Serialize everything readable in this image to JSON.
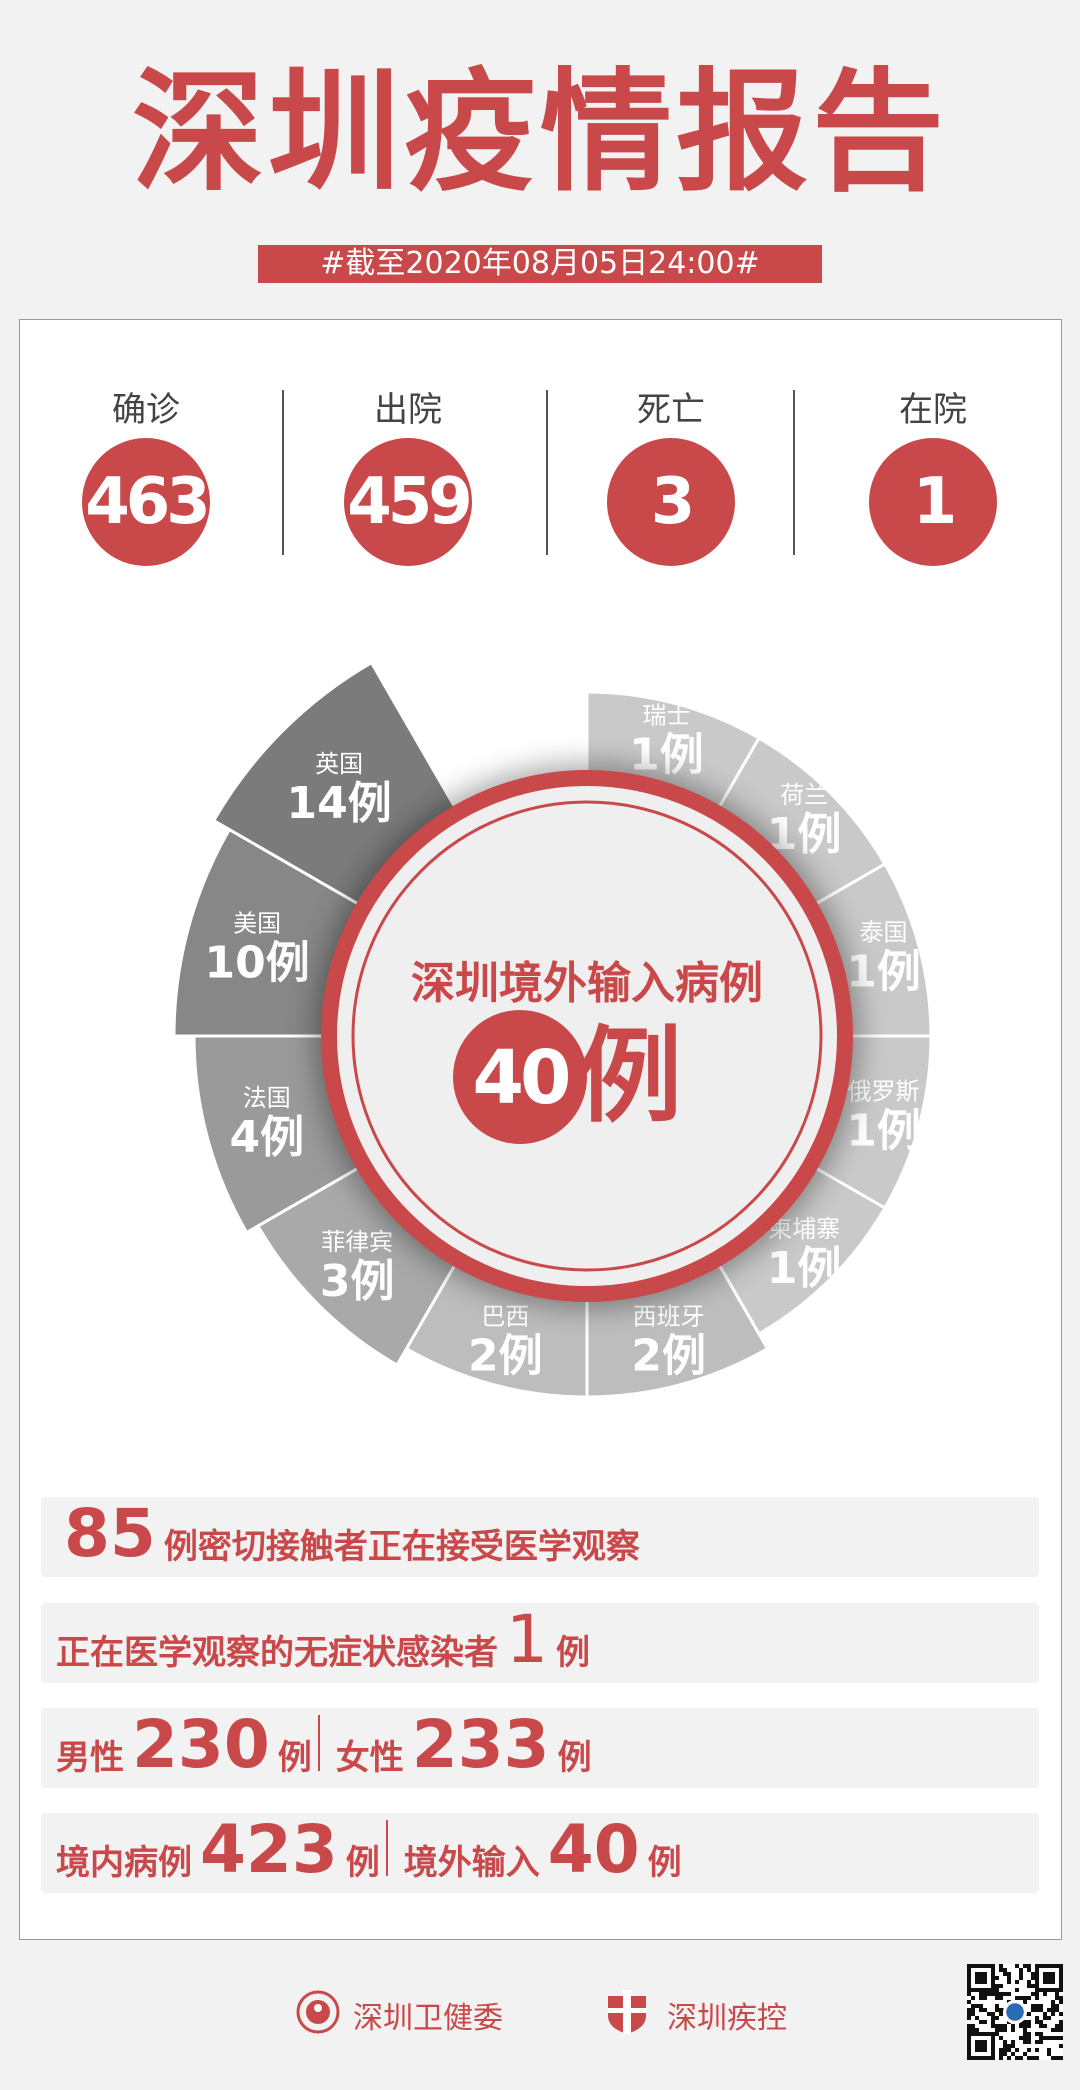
{
  "header": {
    "title": "深圳疫情报告",
    "date": "#截至2020年08月05日24:00#"
  },
  "stats": [
    {
      "label": "确诊",
      "value": "463"
    },
    {
      "label": "出院",
      "value": "459"
    },
    {
      "label": "死亡",
      "value": "3"
    },
    {
      "label": "在院",
      "value": "1"
    }
  ],
  "colors": {
    "accent": "#c9484a",
    "panel": "#f2f2f2"
  },
  "imported": {
    "title": "深圳境外输入病例",
    "total": "40",
    "unit": "例",
    "countries": [
      {
        "name": "瑞士",
        "count": 1,
        "label": "1例"
      },
      {
        "name": "荷兰",
        "count": 1,
        "label": "1例"
      },
      {
        "name": "泰国",
        "count": 1,
        "label": "1例"
      },
      {
        "name": "俄罗斯",
        "count": 1,
        "label": "1例"
      },
      {
        "name": "柬埔寨",
        "count": 1,
        "label": "1例"
      },
      {
        "name": "西班牙",
        "count": 2,
        "label": "2例"
      },
      {
        "name": "巴西",
        "count": 2,
        "label": "2例"
      },
      {
        "name": "菲律宾",
        "count": 3,
        "label": "3例"
      },
      {
        "name": "法国",
        "count": 4,
        "label": "4例"
      },
      {
        "name": "美国",
        "count": 10,
        "label": "10例"
      },
      {
        "name": "英国",
        "count": 14,
        "label": "14例"
      }
    ]
  },
  "rows": {
    "contacts": {
      "number": "85",
      "text": "例密切接触者正在接受医学观察"
    },
    "asymptomatic": {
      "text": "正在医学观察的无症状感染者",
      "number": "1",
      "unit": "例"
    },
    "gender": {
      "male_label": "男性",
      "male": "230",
      "female_label": "女性",
      "female": "233",
      "unit": "例"
    },
    "origin": {
      "local_label": "境内病例",
      "local": "423",
      "imported_label": "境外输入",
      "imported": "40",
      "unit": "例"
    }
  },
  "footer": {
    "org1": "深圳卫健委",
    "org2": "深圳疾控"
  }
}
